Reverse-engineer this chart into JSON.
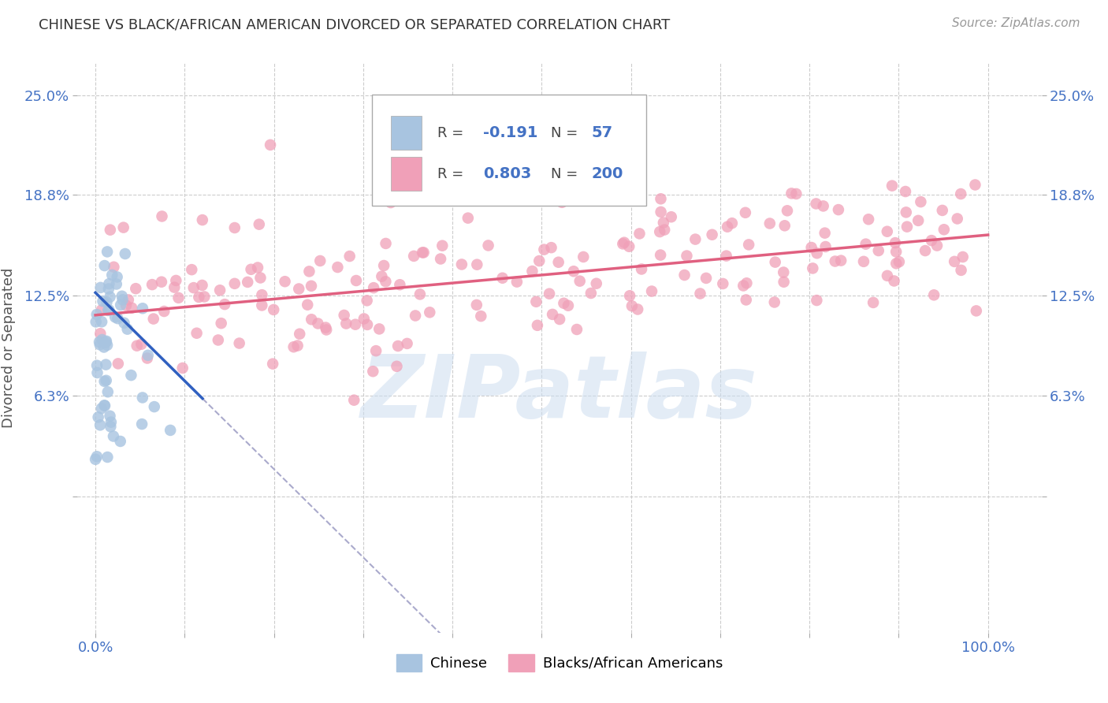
{
  "title": "CHINESE VS BLACK/AFRICAN AMERICAN DIVORCED OR SEPARATED CORRELATION CHART",
  "source": "Source: ZipAtlas.com",
  "ylabel": "Divorced or Separated",
  "watermark": "ZIPatlas",
  "bg_color": "#ffffff",
  "grid_color": "#cccccc",
  "title_color": "#333333",
  "axis_label_color": "#4472c4",
  "chinese_scatter_color": "#a8c4e0",
  "black_scatter_color": "#f0a0b8",
  "chinese_line_color": "#3060c0",
  "black_line_color": "#e06080",
  "dashed_line_color": "#aaaacc",
  "chinese_R": -0.191,
  "chinese_N": 57,
  "black_R": 0.803,
  "black_N": 200,
  "x_ticks": [
    0.0,
    0.1,
    0.2,
    0.3,
    0.4,
    0.5,
    0.6,
    0.7,
    0.8,
    0.9,
    1.0
  ],
  "y_ticks": [
    0.0,
    0.063,
    0.125,
    0.188,
    0.25
  ],
  "ylim": [
    -0.085,
    0.27
  ],
  "xlim": [
    -0.02,
    1.06
  ],
  "black_intercept": 0.113,
  "black_slope": 0.05,
  "chinese_intercept": 0.127,
  "chinese_slope": -0.55,
  "chinese_seed": 7,
  "black_seed": 42
}
